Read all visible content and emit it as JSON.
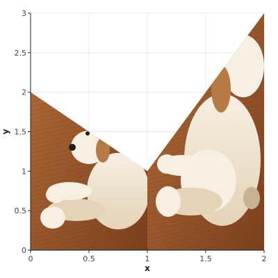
{
  "chart_data": {
    "type": "area",
    "title": "",
    "xlabel": "x",
    "ylabel": "y",
    "xlim": [
      0,
      2
    ],
    "ylim": [
      0,
      3
    ],
    "x_ticks": [
      "0",
      "0.5",
      "1",
      "1.5",
      "2"
    ],
    "y_ticks": [
      "0",
      "0.5",
      "1",
      "1.5",
      "2",
      "2.5",
      "3"
    ],
    "x_tick_values": [
      0,
      0.5,
      1,
      1.5,
      2
    ],
    "y_tick_values": [
      0,
      0.5,
      1,
      1.5,
      2,
      2.5,
      3
    ],
    "grid": true,
    "fill": "image",
    "image_subject": "puppy photo",
    "series": [
      {
        "x": [
          0,
          1,
          2
        ],
        "y": [
          2,
          1,
          3
        ]
      }
    ]
  },
  "colors": {
    "axis": "#222222",
    "grid": "#e8e8e8",
    "floor_light": "#b56f3a",
    "floor_dark": "#7a3f1c",
    "fur_light": "#f6efe2",
    "fur_mid": "#e4d3b7",
    "fur_shadow": "#c7b292",
    "ear": "#b87a45"
  }
}
